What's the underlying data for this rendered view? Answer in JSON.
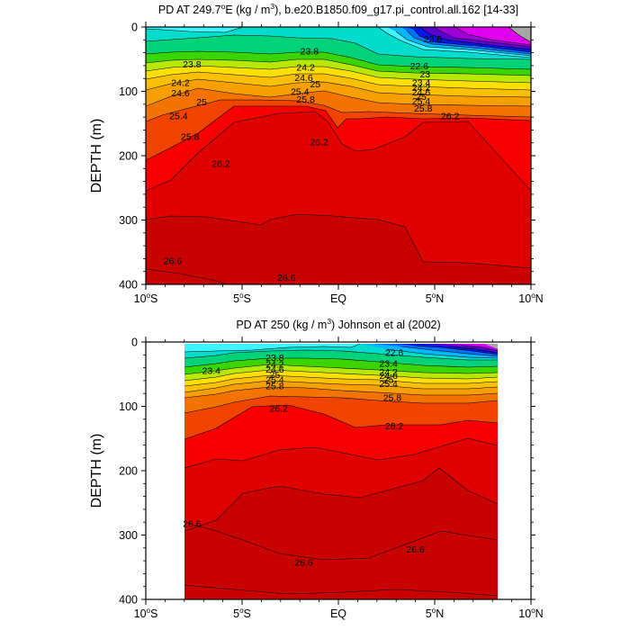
{
  "chart_data": [
    {
      "type": "contour",
      "title_prefix": "PD AT 249.7",
      "title_sup": "o",
      "title_mid": "E (kg / m",
      "title_sup2": "3",
      "title_suffix": "), b.e20.B1850.f09_g17.pi_control.all.162 [14-33]",
      "ylabel": "DEPTH (m)",
      "xlim": [
        -10,
        10
      ],
      "ylim": [
        0,
        400
      ],
      "y_ticks": [
        "0",
        "100",
        "200",
        "300",
        "400"
      ],
      "x_ticks": [
        {
          "base": "10",
          "sup": "o",
          "hemi": "S"
        },
        {
          "base": "5",
          "sup": "o",
          "hemi": "S"
        },
        {
          "base": "EQ",
          "sup": "",
          "hemi": ""
        },
        {
          "base": "5",
          "sup": "o",
          "hemi": "N"
        },
        {
          "base": "10",
          "sup": "o",
          "hemi": "N"
        }
      ],
      "data_xlim": [
        -10,
        10
      ],
      "contour_labels": [
        {
          "text": "23.8",
          "x": -7.6,
          "depth": 57
        },
        {
          "text": "23.8",
          "x": -1.5,
          "depth": 37
        },
        {
          "text": "24.2",
          "x": -1.7,
          "depth": 62
        },
        {
          "text": "24.6",
          "x": -1.8,
          "depth": 78
        },
        {
          "text": "25",
          "x": -1.2,
          "depth": 88
        },
        {
          "text": "25.4",
          "x": -2.0,
          "depth": 100
        },
        {
          "text": "25.8",
          "x": -1.7,
          "depth": 112
        },
        {
          "text": "24.2",
          "x": -8.2,
          "depth": 86
        },
        {
          "text": "24.6",
          "x": -8.2,
          "depth": 102
        },
        {
          "text": "25",
          "x": -7.1,
          "depth": 116
        },
        {
          "text": "25.4",
          "x": -8.3,
          "depth": 138
        },
        {
          "text": "25.8",
          "x": -7.7,
          "depth": 170
        },
        {
          "text": "26.2",
          "x": -6.1,
          "depth": 212
        },
        {
          "text": "26.2",
          "x": -1.0,
          "depth": 178
        },
        {
          "text": "26.6",
          "x": -8.6,
          "depth": 363
        },
        {
          "text": "26.6",
          "x": -2.7,
          "depth": 389
        },
        {
          "text": "22.6",
          "x": 4.9,
          "depth": 18
        },
        {
          "text": "22.6",
          "x": 4.2,
          "depth": 60
        },
        {
          "text": "23",
          "x": 4.5,
          "depth": 73
        },
        {
          "text": "23.4",
          "x": 4.3,
          "depth": 86
        },
        {
          "text": "24.2",
          "x": 4.3,
          "depth": 94
        },
        {
          "text": "24.6",
          "x": 4.3,
          "depth": 101
        },
        {
          "text": "25",
          "x": 4.3,
          "depth": 108
        },
        {
          "text": "25.4",
          "x": 4.3,
          "depth": 115
        },
        {
          "text": "25.8",
          "x": 4.4,
          "depth": 126
        },
        {
          "text": "26.2",
          "x": 5.8,
          "depth": 138
        }
      ]
    },
    {
      "type": "contour",
      "title": "PD AT 250 (kg / m",
      "title_sup": "3",
      "title_suffix": ") Johnson et al (2002)",
      "ylabel": "DEPTH (m)",
      "xlim": [
        -10,
        10
      ],
      "ylim": [
        0,
        400
      ],
      "y_ticks": [
        "0",
        "100",
        "200",
        "300",
        "400"
      ],
      "x_ticks": [
        {
          "base": "10",
          "sup": "o",
          "hemi": "S"
        },
        {
          "base": "5",
          "sup": "o",
          "hemi": "S"
        },
        {
          "base": "EQ",
          "sup": "",
          "hemi": ""
        },
        {
          "base": "5",
          "sup": "o",
          "hemi": "N"
        },
        {
          "base": "10",
          "sup": "o",
          "hemi": "N"
        }
      ],
      "data_xlim": [
        -8,
        8.2
      ],
      "contour_labels": [
        {
          "text": "23.4",
          "x": -6.6,
          "depth": 44
        },
        {
          "text": "23.8",
          "x": -3.3,
          "depth": 24
        },
        {
          "text": "24.2",
          "x": -3.3,
          "depth": 34
        },
        {
          "text": "24.6",
          "x": -3.3,
          "depth": 42
        },
        {
          "text": "25",
          "x": -3.3,
          "depth": 50
        },
        {
          "text": "25.4",
          "x": -3.3,
          "depth": 58
        },
        {
          "text": "25.8",
          "x": -3.3,
          "depth": 68
        },
        {
          "text": "26.2",
          "x": -3.1,
          "depth": 103
        },
        {
          "text": "22.6",
          "x": 2.9,
          "depth": 16
        },
        {
          "text": "23.4",
          "x": 2.6,
          "depth": 33
        },
        {
          "text": "24.2",
          "x": 2.6,
          "depth": 46
        },
        {
          "text": "24.6",
          "x": 2.6,
          "depth": 52
        },
        {
          "text": "25",
          "x": 2.6,
          "depth": 58
        },
        {
          "text": "25.4",
          "x": 2.6,
          "depth": 64
        },
        {
          "text": "25.8",
          "x": 2.8,
          "depth": 86
        },
        {
          "text": "26.2",
          "x": 2.9,
          "depth": 130
        },
        {
          "text": "26.6",
          "x": -7.6,
          "depth": 282
        },
        {
          "text": "26.6",
          "x": -1.8,
          "depth": 342
        },
        {
          "text": "26.6",
          "x": 4.0,
          "depth": 322
        }
      ]
    }
  ]
}
